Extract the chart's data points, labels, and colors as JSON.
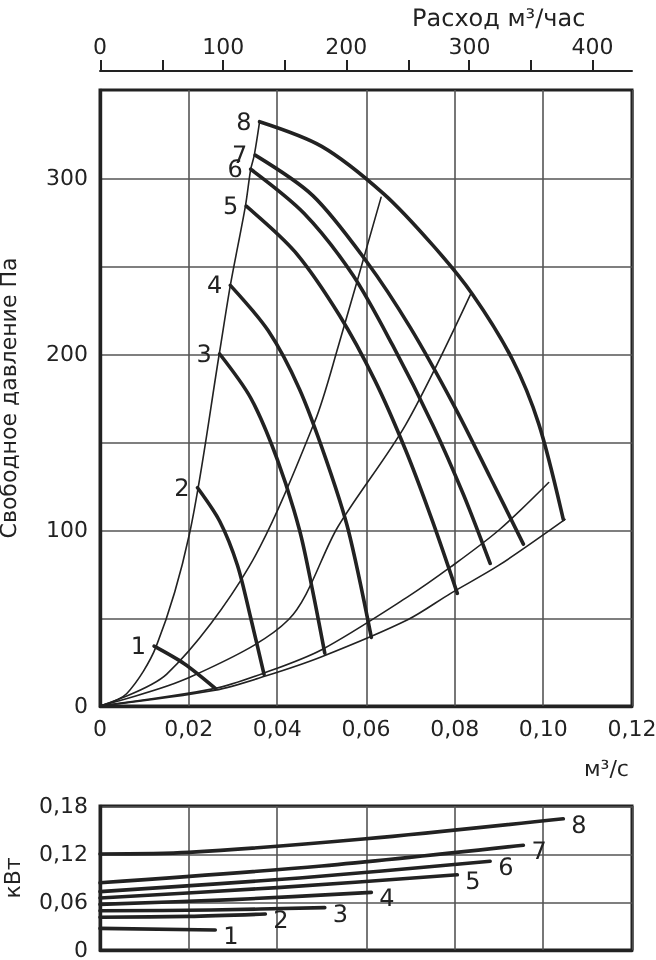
{
  "chart_data": [
    {
      "type": "line",
      "ylabel": "Свободное давление Па",
      "xlabel": "м³/с",
      "x2label": "Расход м³/час",
      "xlim": [
        0,
        0.12
      ],
      "xticks": [
        0,
        {
          "value": 0.02,
          "label": "0,02"
        },
        {
          "value": 0.04,
          "label": "0,04"
        },
        {
          "value": 0.06,
          "label": "0,06"
        },
        {
          "value": 0.08,
          "label": "0,08"
        },
        {
          "value": 0.1,
          "label": "0,10"
        },
        {
          "value": 0.12,
          "label": "0,12"
        }
      ],
      "x2lim": [
        0,
        432
      ],
      "x2ticks": [
        0,
        {
          "value": 50,
          "label": null
        },
        100,
        {
          "value": 150,
          "label": null
        },
        200,
        {
          "value": 250,
          "label": null
        },
        300,
        {
          "value": 350,
          "label": null
        },
        400
      ],
      "ylim": [
        0,
        350
      ],
      "yticks": [
        0,
        {
          "value": 50,
          "label": null
        },
        100,
        {
          "value": 150,
          "label": null
        },
        200,
        {
          "value": 250,
          "label": null
        },
        300
      ],
      "grid": true,
      "marker": "none",
      "series": [
        {
          "name": "1",
          "color": "#222222",
          "x": [
            0.0122,
            0.019,
            0.026
          ],
          "values": [
            34,
            24,
            10
          ]
        },
        {
          "name": "2",
          "color": "#222222",
          "x": [
            0.022,
            0.027,
            0.031,
            0.034,
            0.037
          ],
          "values": [
            124,
            105,
            80,
            50,
            18
          ]
        },
        {
          "name": "3",
          "color": "#222222",
          "x": [
            0.027,
            0.034,
            0.04,
            0.045,
            0.048,
            0.0507
          ],
          "values": [
            200,
            175,
            140,
            100,
            65,
            30
          ]
        },
        {
          "name": "4",
          "color": "#222222",
          "x": [
            0.0294,
            0.038,
            0.045,
            0.051,
            0.056,
            0.0612
          ],
          "values": [
            239,
            213,
            180,
            140,
            100,
            39
          ]
        },
        {
          "name": "5",
          "color": "#222222",
          "x": [
            0.033,
            0.044,
            0.054,
            0.062,
            0.069,
            0.075,
            0.0806
          ],
          "values": [
            284,
            258,
            222,
            185,
            145,
            105,
            64
          ]
        },
        {
          "name": "6",
          "color": "#222222",
          "x": [
            0.034,
            0.046,
            0.057,
            0.066,
            0.075,
            0.082,
            0.088
          ],
          "values": [
            305,
            280,
            245,
            205,
            160,
            120,
            81
          ]
        },
        {
          "name": "7",
          "color": "#222222",
          "x": [
            0.035,
            0.048,
            0.06,
            0.07,
            0.08,
            0.088,
            0.0955
          ],
          "values": [
            313,
            290,
            253,
            215,
            170,
            130,
            92
          ]
        },
        {
          "name": "8",
          "color": "#222222",
          "x": [
            0.036,
            0.05,
            0.064,
            0.075,
            0.084,
            0.093,
            0.099,
            0.1045
          ],
          "values": [
            332,
            318,
            291,
            262,
            234,
            197,
            160,
            106
          ]
        },
        {
          "color": "#222222",
          "x": [
            0,
            0.006,
            0.0127,
            0.0202,
            0.0269,
            0.0294,
            0.0328,
            0.034,
            0.0348,
            0.036
          ],
          "values": [
            0,
            7,
            34,
            98,
            200,
            239,
            284,
            305,
            313,
            332
          ]
        },
        {
          "color": "#222222",
          "x": [
            0,
            0.015,
            0.0336,
            0.0485,
            0.0537,
            0.0634
          ],
          "values": [
            0,
            18,
            79,
            162,
            204,
            289
          ]
        },
        {
          "color": "#222222",
          "x": [
            0,
            0.02,
            0.0425,
            0.0537,
            0.069,
            0.0836
          ],
          "values": [
            0,
            16,
            49,
            102,
            160,
            234
          ]
        },
        {
          "color": "#222222",
          "x": [
            0,
            0.026,
            0.0373,
            0.05,
            0.0694,
            0.0791,
            0.09,
            0.1012
          ],
          "values": [
            0,
            10,
            19,
            32,
            62,
            79,
            100,
            127
          ]
        },
        {
          "color": "#222222",
          "x": [
            0,
            0.026,
            0.0373,
            0.05,
            0.0694,
            0.0791,
            0.09,
            0.1049
          ],
          "values": [
            0,
            9,
            17,
            28,
            49,
            64,
            80,
            106
          ]
        }
      ]
    },
    {
      "type": "line",
      "ylabel": "кВт",
      "xlim": [
        0,
        0.12
      ],
      "xticks": [
        0,
        0.02,
        0.04,
        0.06,
        0.08,
        0.1,
        0.12
      ],
      "ylim": [
        0,
        0.18
      ],
      "yticks": [
        0,
        {
          "value": 0.06,
          "label": "0,06"
        },
        {
          "value": 0.12,
          "label": "0,12"
        },
        {
          "value": 0.18,
          "label": "0,18"
        }
      ],
      "tick_labels": "y",
      "grid": true,
      "marker": "none",
      "series": [
        {
          "name": "1",
          "color": "#222222",
          "x": [
            0,
            0.026
          ],
          "values": [
            0.027,
            0.025
          ]
        },
        {
          "name": "2",
          "color": "#222222",
          "x": [
            0,
            0.02,
            0.0373
          ],
          "values": [
            0.041,
            0.042,
            0.045
          ]
        },
        {
          "name": "3",
          "color": "#222222",
          "x": [
            0,
            0.025,
            0.0507
          ],
          "values": [
            0.049,
            0.05,
            0.053
          ]
        },
        {
          "name": "4",
          "color": "#222222",
          "x": [
            0,
            0.03,
            0.0612
          ],
          "values": [
            0.057,
            0.063,
            0.072
          ]
        },
        {
          "name": "5",
          "color": "#222222",
          "x": [
            0,
            0.04,
            0.0806
          ],
          "values": [
            0.065,
            0.078,
            0.094
          ]
        },
        {
          "name": "6",
          "color": "#222222",
          "x": [
            0,
            0.045,
            0.088
          ],
          "values": [
            0.073,
            0.09,
            0.111
          ]
        },
        {
          "name": "7",
          "color": "#222222",
          "x": [
            0,
            0.05,
            0.0955
          ],
          "values": [
            0.084,
            0.105,
            0.131
          ]
        },
        {
          "name": "8",
          "color": "#222222",
          "x": [
            0,
            0.02,
            0.06,
            0.1045
          ],
          "values": [
            0.12,
            0.122,
            0.139,
            0.164
          ]
        }
      ]
    }
  ]
}
